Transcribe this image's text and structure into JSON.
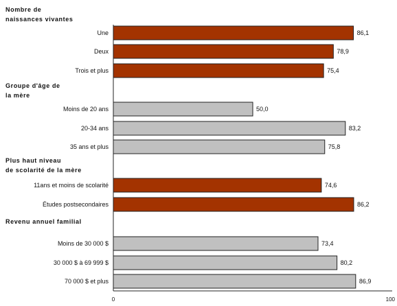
{
  "chart_data": {
    "type": "bar",
    "orientation": "horizontal",
    "xlim": [
      0,
      100
    ],
    "x_ticks": [
      "0",
      "100"
    ],
    "grid": false,
    "legend": "none",
    "colors": {
      "highlight": "#a33300",
      "neutral": "#c0c0c0",
      "border": "#222222"
    },
    "groups": [
      {
        "title_lines": [
          "Nombre de",
          "naissances vivantes"
        ],
        "color": "highlight",
        "bars": [
          {
            "label": "Une",
            "value": 86.1,
            "value_text": "86,1"
          },
          {
            "label": "Deux",
            "value": 78.9,
            "value_text": "78,9"
          },
          {
            "label": "Trois et plus",
            "value": 75.4,
            "value_text": "75,4"
          }
        ]
      },
      {
        "title_lines": [
          "Groupe d'âge de",
          "la mère"
        ],
        "color": "neutral",
        "bars": [
          {
            "label": "Moins de 20 ans",
            "value": 50.0,
            "value_text": "50,0"
          },
          {
            "label": "20-34 ans",
            "value": 83.2,
            "value_text": "83,2"
          },
          {
            "label": "35 ans et plus",
            "value": 75.8,
            "value_text": "75,8"
          }
        ]
      },
      {
        "title_lines": [
          "Plus haut niveau",
          "de scolarité de la mère"
        ],
        "color": "highlight",
        "bars": [
          {
            "label": "11ans et moins de scolarité",
            "value": 74.6,
            "value_text": "74,6"
          },
          {
            "label": "Études postsecondaires",
            "value": 86.2,
            "value_text": "86,2"
          }
        ]
      },
      {
        "title_lines": [
          "Revenu annuel familial"
        ],
        "color": "neutral",
        "bars": [
          {
            "label": "Moins de 30 000 $",
            "value": 73.4,
            "value_text": "73,4"
          },
          {
            "label": "30 000 $ à 69 999 $",
            "value": 80.2,
            "value_text": "80,2"
          },
          {
            "label": "70 000 $ et plus",
            "value": 86.9,
            "value_text": "86,9"
          }
        ]
      }
    ]
  }
}
